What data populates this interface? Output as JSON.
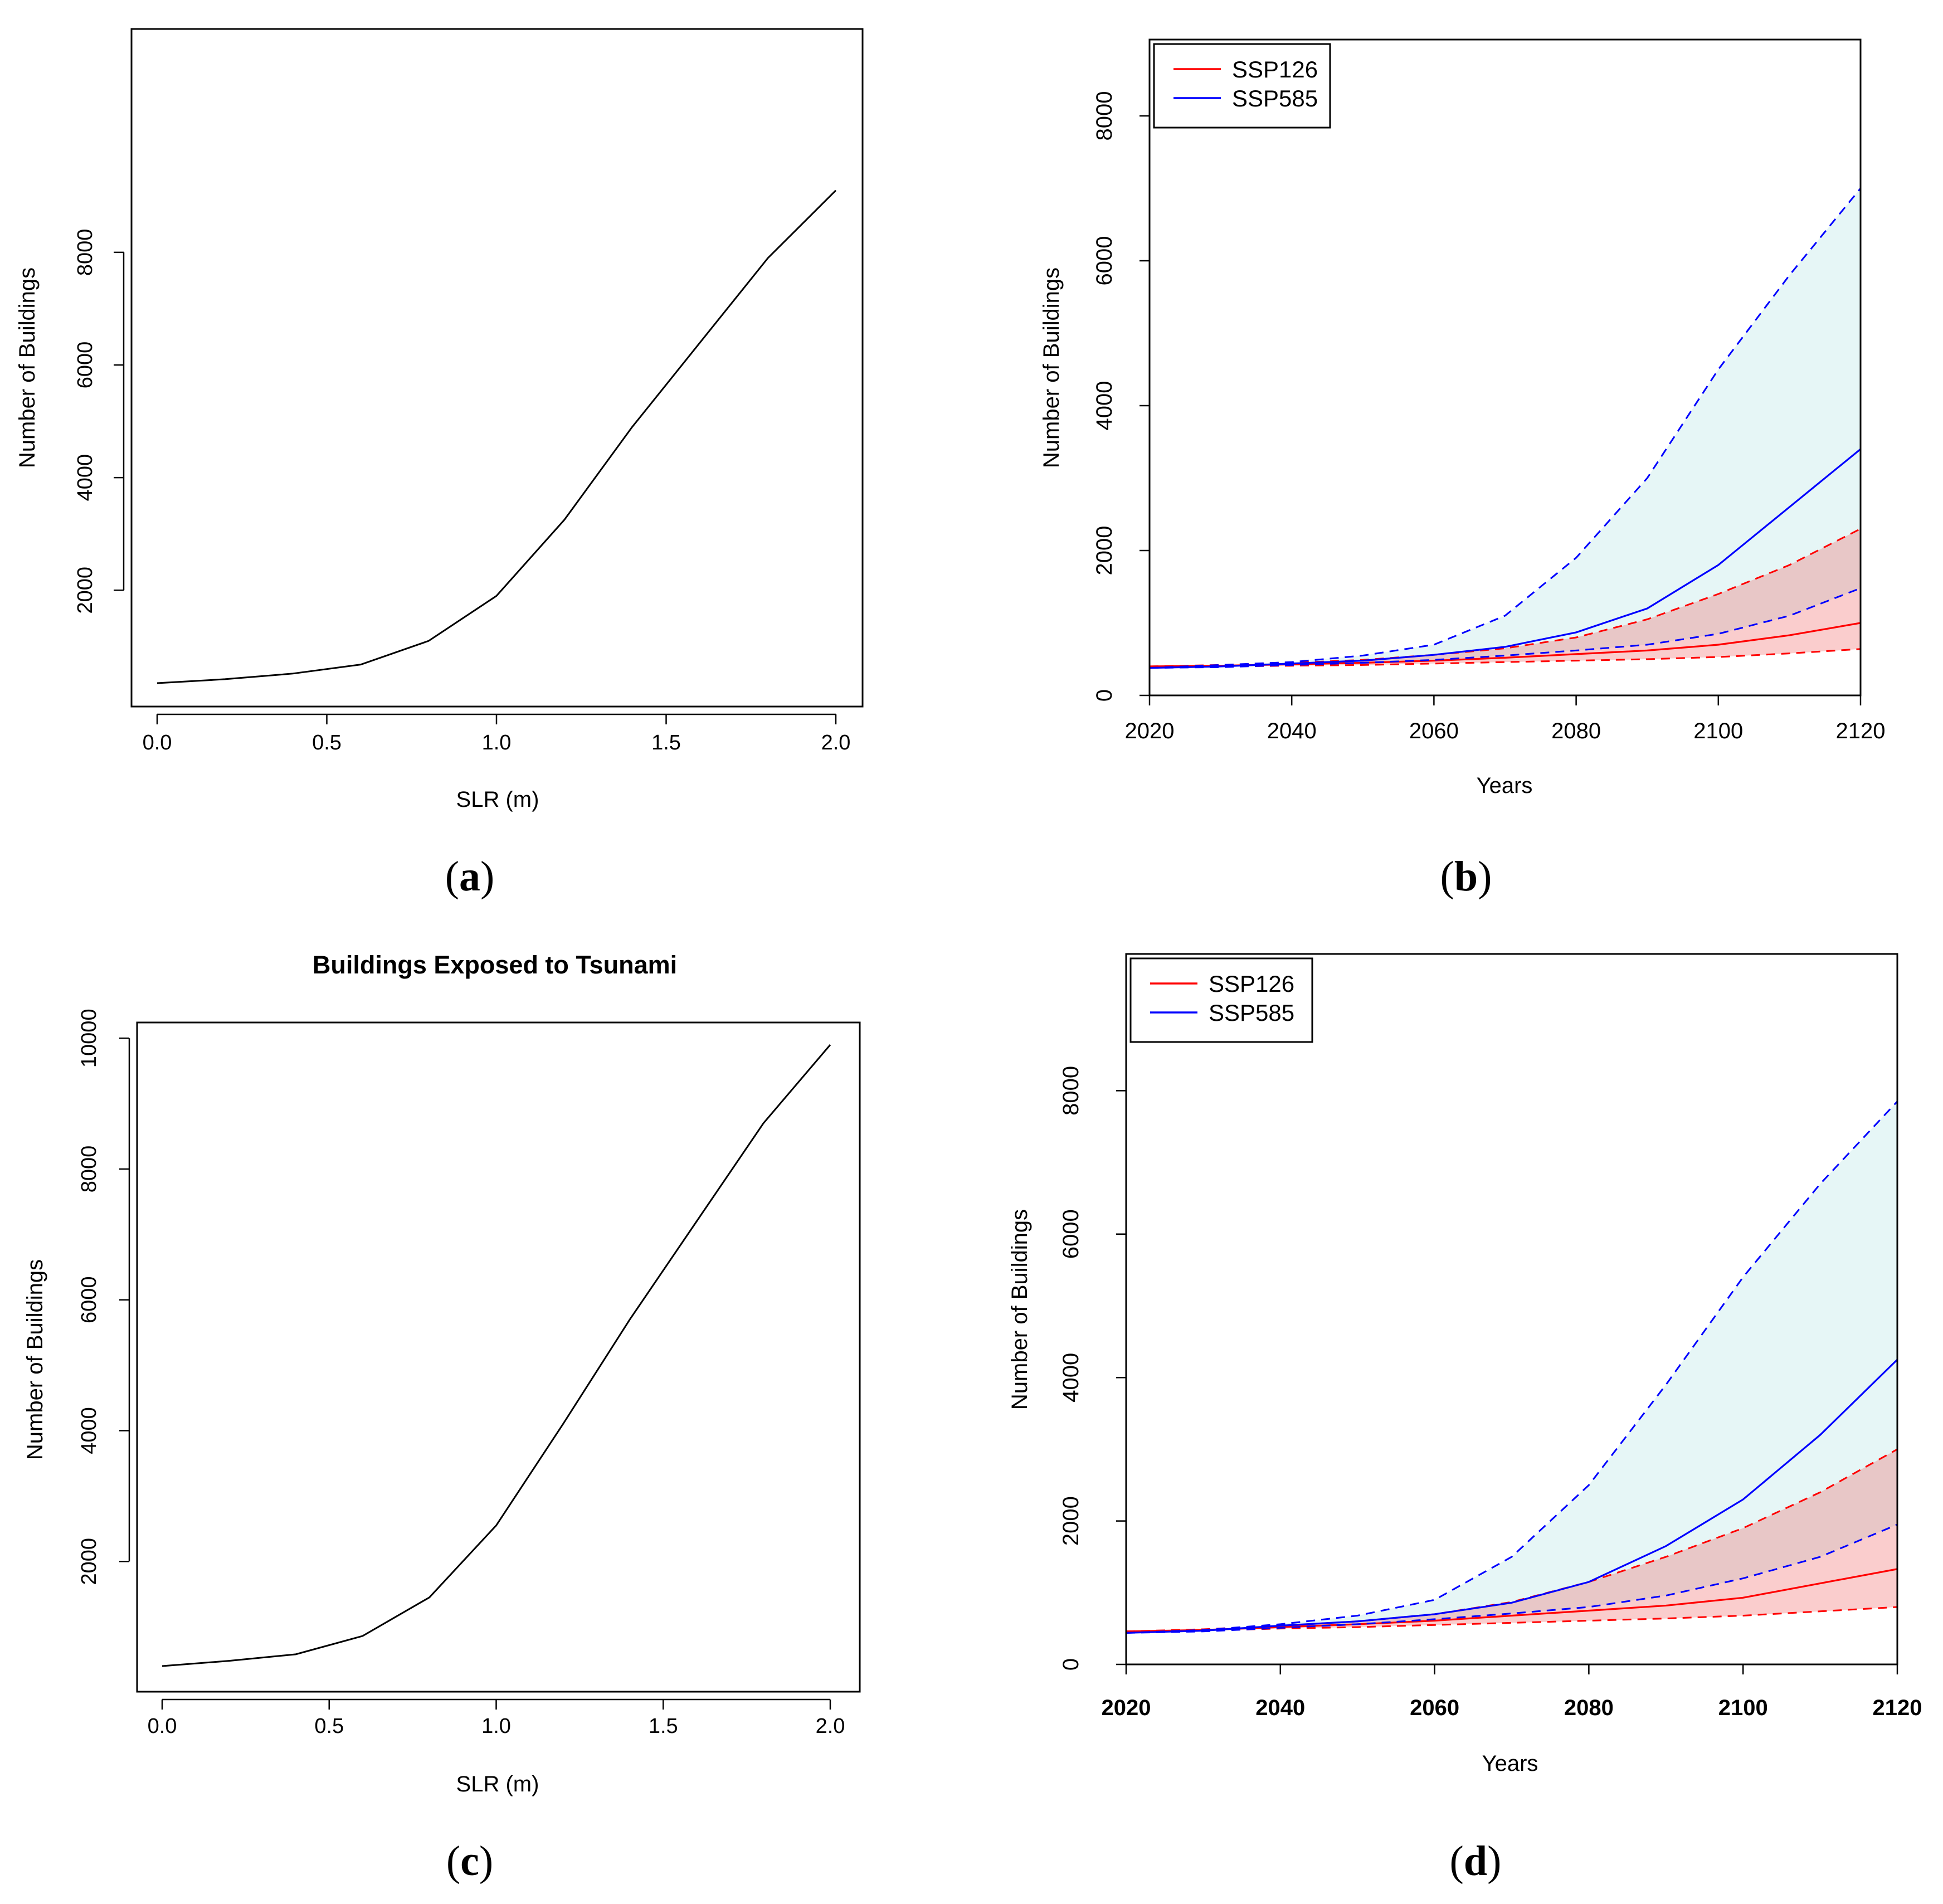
{
  "chart_data": [
    {
      "panel_label": "a",
      "type": "line",
      "title": "",
      "xlabel": "SLR (m)",
      "ylabel": "Number of Buildings",
      "xlim": [
        0,
        2
      ],
      "ylim": [
        0,
        9000
      ],
      "xticks": [
        "0.0",
        "0.5",
        "1.0",
        "1.5",
        "2.0"
      ],
      "yticks": [
        "2000",
        "4000",
        "6000",
        "8000"
      ],
      "series": [
        {
          "color": "#000000",
          "x": [
            0.0,
            0.2,
            0.4,
            0.6,
            0.8,
            1.0,
            1.2,
            1.4,
            1.6,
            1.8,
            2.0
          ],
          "values": [
            350,
            420,
            520,
            680,
            1100,
            1900,
            3250,
            4900,
            6400,
            7900,
            9100
          ]
        }
      ]
    },
    {
      "panel_label": "b",
      "type": "area",
      "title": "",
      "xlabel": "Years",
      "ylabel": "Number of Buildings",
      "xlim": [
        2020,
        2120
      ],
      "ylim": [
        0,
        8500
      ],
      "xticks": [
        "2020",
        "2040",
        "2060",
        "2080",
        "2100",
        "2120"
      ],
      "yticks": [
        "0",
        "2000",
        "4000",
        "6000",
        "8000"
      ],
      "legend_position": "top-left",
      "series": [
        {
          "name": "SSP126",
          "color": "#ff0000",
          "x": [
            2020,
            2030,
            2040,
            2050,
            2060,
            2070,
            2080,
            2090,
            2100,
            2110,
            2120
          ],
          "values": [
            400,
            410,
            430,
            450,
            480,
            520,
            570,
            620,
            700,
            830,
            1000
          ],
          "lower": [
            400,
            400,
            410,
            420,
            440,
            460,
            480,
            500,
            530,
            580,
            640
          ],
          "upper": [
            400,
            420,
            450,
            490,
            560,
            650,
            800,
            1050,
            1400,
            1800,
            2300
          ]
        },
        {
          "name": "SSP585",
          "color": "#0000ff",
          "x": [
            2020,
            2030,
            2040,
            2050,
            2060,
            2070,
            2080,
            2090,
            2100,
            2110,
            2120
          ],
          "values": [
            380,
            400,
            440,
            480,
            560,
            670,
            870,
            1200,
            1800,
            2600,
            3400
          ],
          "lower": [
            380,
            390,
            420,
            450,
            490,
            550,
            620,
            700,
            850,
            1100,
            1480
          ],
          "upper": [
            380,
            420,
            460,
            550,
            700,
            1100,
            1900,
            3000,
            4500,
            5800,
            7000
          ]
        }
      ]
    },
    {
      "panel_label": "c",
      "type": "line",
      "title": "Buildings Exposed to Tsunami",
      "xlabel": "SLR (m)",
      "ylabel": "Number of Buildings",
      "xlim": [
        0,
        2
      ],
      "ylim": [
        0,
        10000
      ],
      "xticks": [
        "0.0",
        "0.5",
        "1.0",
        "1.5",
        "2.0"
      ],
      "yticks": [
        "2000",
        "4000",
        "6000",
        "8000",
        "10000"
      ],
      "series": [
        {
          "color": "#000000",
          "x": [
            0.0,
            0.2,
            0.4,
            0.6,
            0.8,
            1.0,
            1.2,
            1.4,
            1.6,
            1.8,
            2.0
          ],
          "values": [
            400,
            480,
            580,
            860,
            1450,
            2550,
            4100,
            5700,
            7200,
            8700,
            9900
          ]
        }
      ]
    },
    {
      "panel_label": "d",
      "type": "area",
      "title": "",
      "xlabel": "Years",
      "ylabel": "Number of Buildings",
      "xlim": [
        2020,
        2120
      ],
      "ylim": [
        0,
        9500
      ],
      "xticks": [
        "2020",
        "2040",
        "2060",
        "2080",
        "2100",
        "2120"
      ],
      "yticks": [
        "0",
        "2000",
        "4000",
        "6000",
        "8000"
      ],
      "legend_position": "top-left",
      "series": [
        {
          "name": "SSP126",
          "color": "#ff0000",
          "x": [
            2020,
            2030,
            2040,
            2050,
            2060,
            2070,
            2080,
            2090,
            2100,
            2110,
            2120
          ],
          "values": [
            460,
            480,
            520,
            560,
            610,
            680,
            750,
            820,
            930,
            1130,
            1330
          ],
          "lower": [
            460,
            470,
            500,
            520,
            550,
            580,
            610,
            640,
            680,
            740,
            800
          ],
          "upper": [
            460,
            490,
            540,
            600,
            700,
            870,
            1150,
            1500,
            1900,
            2400,
            3000
          ]
        },
        {
          "name": "SSP585",
          "color": "#0000ff",
          "x": [
            2020,
            2030,
            2040,
            2050,
            2060,
            2070,
            2080,
            2090,
            2100,
            2110,
            2120
          ],
          "values": [
            440,
            470,
            540,
            600,
            700,
            860,
            1150,
            1650,
            2300,
            3200,
            4250
          ],
          "lower": [
            440,
            460,
            510,
            560,
            630,
            710,
            800,
            960,
            1200,
            1500,
            1950
          ],
          "upper": [
            440,
            480,
            560,
            680,
            900,
            1500,
            2500,
            3900,
            5400,
            6700,
            7850
          ]
        }
      ]
    }
  ]
}
